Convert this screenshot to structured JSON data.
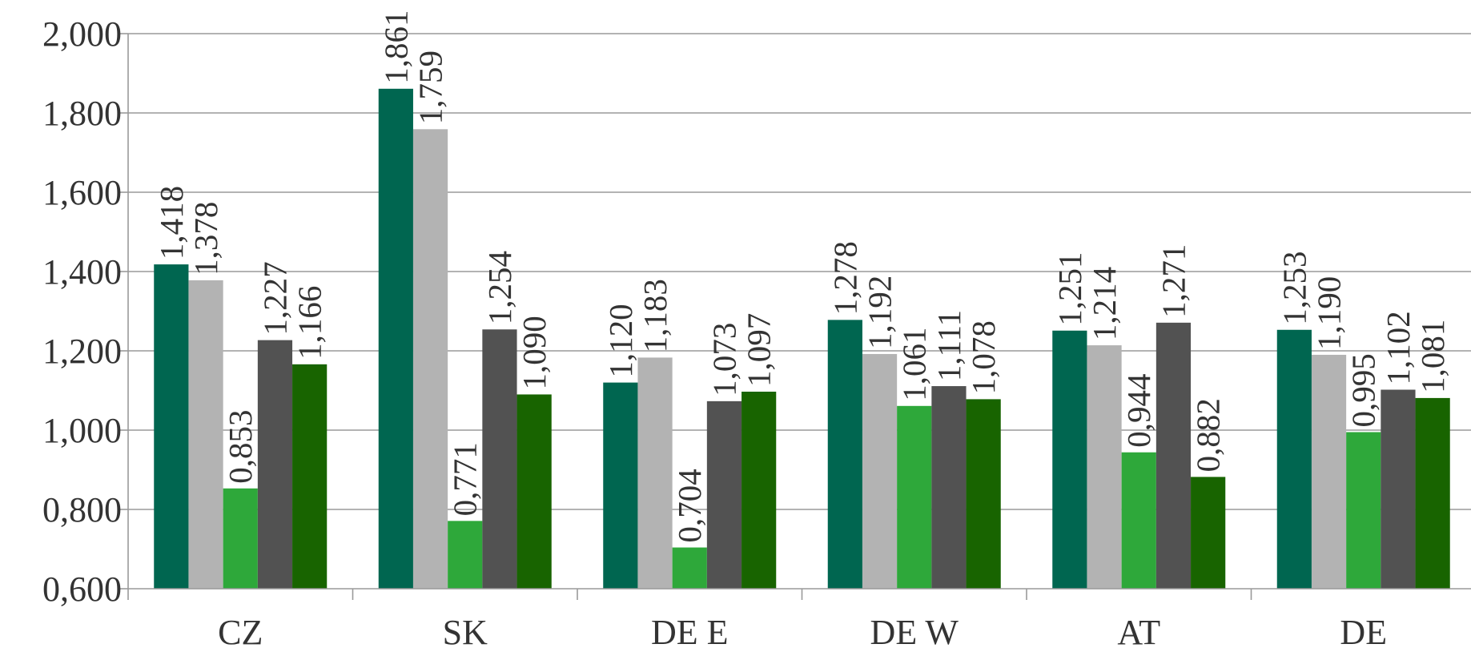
{
  "chart_data": {
    "type": "bar",
    "title": "",
    "xlabel": "",
    "ylabel": "",
    "ylim": [
      0.6,
      2.0
    ],
    "yticks": [
      "0,600",
      "0,800",
      "1,000",
      "1,200",
      "1,400",
      "1,600",
      "1,800",
      "2,000"
    ],
    "ytick_values": [
      0.6,
      0.8,
      1.0,
      1.2,
      1.4,
      1.6,
      1.8,
      2.0
    ],
    "grid": true,
    "legend": "none",
    "categories": [
      "CZ",
      "SK",
      "DE E",
      "DE W",
      "AT",
      "DE"
    ],
    "series": [
      {
        "color": "#006650",
        "values": [
          1.418,
          1.861,
          1.12,
          1.278,
          1.251,
          1.253
        ],
        "labels": [
          "1,418",
          "1,861",
          "1,120",
          "1,278",
          "1,251",
          "1,253"
        ]
      },
      {
        "color": "#b3b3b3",
        "values": [
          1.378,
          1.759,
          1.183,
          1.192,
          1.214,
          1.19
        ],
        "labels": [
          "1,378",
          "1,759",
          "1,183",
          "1,192",
          "1,214",
          "1,190"
        ]
      },
      {
        "color": "#2ea83a",
        "values": [
          0.853,
          0.771,
          0.704,
          1.061,
          0.944,
          0.995
        ],
        "labels": [
          "0,853",
          "0,771",
          "0,704",
          "1,061",
          "0,944",
          "0,995"
        ]
      },
      {
        "color": "#525252",
        "values": [
          1.227,
          1.254,
          1.073,
          1.111,
          1.271,
          1.102
        ],
        "labels": [
          "1,227",
          "1,254",
          "1,073",
          "1,111",
          "1,271",
          "1,102"
        ]
      },
      {
        "color": "#186400",
        "values": [
          1.166,
          1.09,
          1.097,
          1.078,
          0.882,
          1.081
        ],
        "labels": [
          "1,166",
          "1,090",
          "1,097",
          "1,078",
          "0,882",
          "1,081"
        ]
      }
    ]
  }
}
